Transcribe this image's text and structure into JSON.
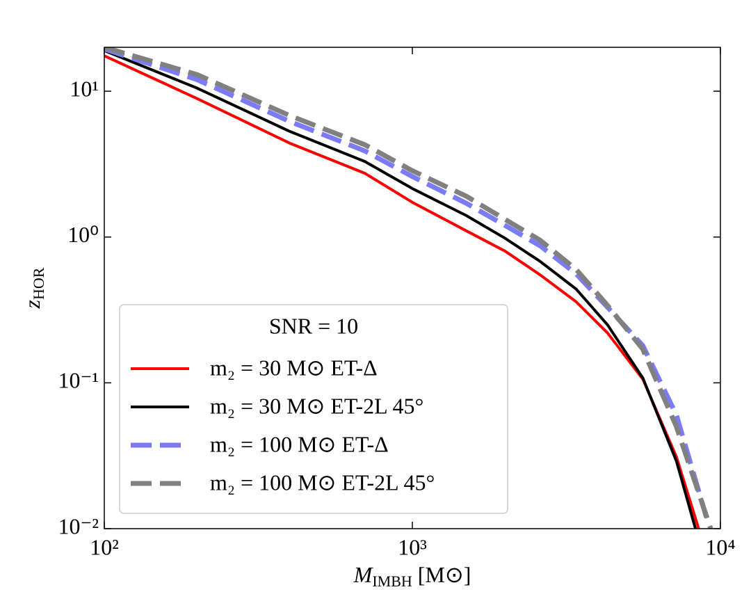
{
  "chart_data": {
    "type": "line",
    "xlabel": "M_IMBH [M⊙]",
    "ylabel": "z_HOR",
    "log_x": true,
    "log_y": true,
    "xlim": [
      100,
      10000
    ],
    "ylim": [
      0.01,
      20
    ],
    "xticks": [
      {
        "value": 100,
        "label": "10²"
      },
      {
        "value": 1000,
        "label": "10³"
      },
      {
        "value": 10000,
        "label": "10⁴"
      }
    ],
    "yticks": [
      {
        "value": 0.01,
        "label": "10⁻²"
      },
      {
        "value": 0.1,
        "label": "10⁻¹"
      },
      {
        "value": 1,
        "label": "10⁰"
      },
      {
        "value": 10,
        "label": "10¹"
      }
    ],
    "legend_title": "SNR = 10",
    "legend_position": "lower left",
    "series": [
      {
        "name": "m₂ = 30 M⊙  ET-Δ",
        "color": "#ff0000",
        "dashed": false,
        "x": [
          100,
          200,
          400,
          700,
          1000,
          1500,
          2000,
          2600,
          3400,
          4300,
          5600,
          7200,
          8500
        ],
        "values": [
          17.5,
          8.9,
          4.4,
          2.74,
          1.73,
          1.1,
          0.8,
          0.55,
          0.36,
          0.22,
          0.106,
          0.031,
          0.01
        ]
      },
      {
        "name": "m₂ = 30 M⊙  ET-2L 45°",
        "color": "#000000",
        "dashed": false,
        "x": [
          100,
          200,
          400,
          700,
          1000,
          1500,
          2000,
          2600,
          3400,
          4300,
          5600,
          7200,
          8300
        ],
        "values": [
          19,
          10.5,
          5.3,
          3.3,
          2.15,
          1.4,
          0.98,
          0.68,
          0.44,
          0.25,
          0.108,
          0.029,
          0.01
        ]
      },
      {
        "name": "m₂ = 100 M⊙ ET-Δ",
        "color": "#7b7bf5",
        "dashed": true,
        "x": [
          100,
          200,
          400,
          700,
          1000,
          1500,
          2000,
          2600,
          3400,
          4300,
          5600,
          7200,
          9000
        ],
        "values": [
          19.5,
          12,
          6.2,
          3.9,
          2.6,
          1.7,
          1.2,
          0.87,
          0.56,
          0.33,
          0.18,
          0.06,
          0.012
        ]
      },
      {
        "name": "m₂ = 100 M⊙ ET-2L 45°",
        "color": "#808080",
        "dashed": true,
        "x": [
          100,
          200,
          400,
          700,
          1000,
          1500,
          2000,
          2600,
          3400,
          4300,
          5600,
          7200,
          9300
        ],
        "values": [
          20,
          13,
          6.8,
          4.3,
          2.85,
          1.9,
          1.32,
          0.95,
          0.6,
          0.34,
          0.17,
          0.05,
          0.01
        ]
      }
    ]
  }
}
